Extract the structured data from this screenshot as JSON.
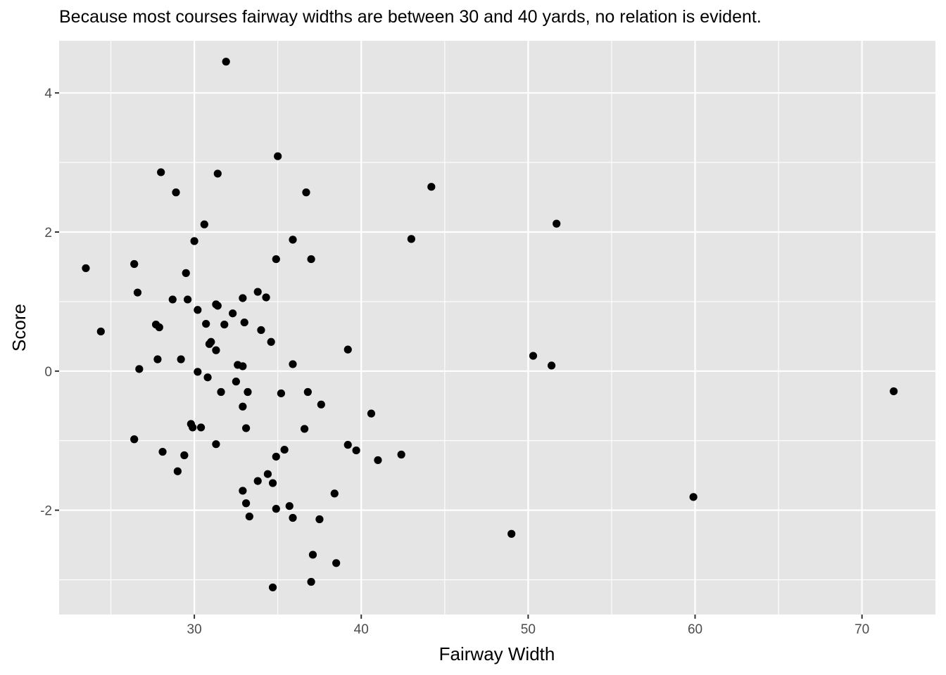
{
  "chart_data": {
    "type": "scatter",
    "title": "Because most courses fairway widths are between 30 and 40 yards, no relation is evident.",
    "xlabel": "Fairway Width",
    "ylabel": "Score",
    "xlim": [
      21.9,
      74.4
    ],
    "ylim": [
      -3.5,
      4.75
    ],
    "x_ticks": [
      30,
      40,
      50,
      60,
      70
    ],
    "y_ticks": [
      -2,
      0,
      2,
      4
    ],
    "x_minor_ticks": [
      25,
      35,
      45,
      55,
      65
    ],
    "y_minor_ticks": [
      -3,
      -1,
      1,
      3
    ],
    "grid": true,
    "point_color": "#000000",
    "panel_color": "#e5e5e5",
    "grid_color": "#ffffff",
    "points": [
      {
        "x": 23.5,
        "y": 1.48
      },
      {
        "x": 24.4,
        "y": 0.57
      },
      {
        "x": 26.4,
        "y": 1.54
      },
      {
        "x": 26.4,
        "y": -0.98
      },
      {
        "x": 26.6,
        "y": 1.13
      },
      {
        "x": 26.7,
        "y": 0.03
      },
      {
        "x": 27.7,
        "y": 0.67
      },
      {
        "x": 27.8,
        "y": 0.17
      },
      {
        "x": 27.9,
        "y": 0.63
      },
      {
        "x": 28.0,
        "y": 2.86
      },
      {
        "x": 28.1,
        "y": -1.16
      },
      {
        "x": 28.7,
        "y": 1.03
      },
      {
        "x": 28.9,
        "y": 2.57
      },
      {
        "x": 29.0,
        "y": -1.44
      },
      {
        "x": 29.2,
        "y": 0.17
      },
      {
        "x": 29.4,
        "y": -1.21
      },
      {
        "x": 29.5,
        "y": 1.41
      },
      {
        "x": 29.6,
        "y": 1.03
      },
      {
        "x": 29.8,
        "y": -0.76
      },
      {
        "x": 29.9,
        "y": -0.81
      },
      {
        "x": 30.0,
        "y": 1.87
      },
      {
        "x": 30.2,
        "y": 0.88
      },
      {
        "x": 30.2,
        "y": -0.01
      },
      {
        "x": 30.4,
        "y": -0.81
      },
      {
        "x": 30.6,
        "y": 2.11
      },
      {
        "x": 30.7,
        "y": 0.68
      },
      {
        "x": 30.8,
        "y": -0.09
      },
      {
        "x": 30.9,
        "y": 0.39
      },
      {
        "x": 31.0,
        "y": 0.42
      },
      {
        "x": 31.3,
        "y": 0.96
      },
      {
        "x": 31.3,
        "y": 0.3
      },
      {
        "x": 31.3,
        "y": -1.05
      },
      {
        "x": 31.4,
        "y": 2.84
      },
      {
        "x": 31.4,
        "y": 0.94
      },
      {
        "x": 31.6,
        "y": -0.3
      },
      {
        "x": 31.8,
        "y": 0.67
      },
      {
        "x": 31.9,
        "y": 4.45
      },
      {
        "x": 32.3,
        "y": 0.83
      },
      {
        "x": 32.5,
        "y": -0.15
      },
      {
        "x": 32.6,
        "y": 0.09
      },
      {
        "x": 32.9,
        "y": 0.07
      },
      {
        "x": 32.9,
        "y": 1.05
      },
      {
        "x": 32.9,
        "y": -0.51
      },
      {
        "x": 32.9,
        "y": -1.72
      },
      {
        "x": 33.0,
        "y": 0.7
      },
      {
        "x": 33.1,
        "y": -0.82
      },
      {
        "x": 33.1,
        "y": -1.9
      },
      {
        "x": 33.2,
        "y": -0.3
      },
      {
        "x": 33.3,
        "y": -2.09
      },
      {
        "x": 33.8,
        "y": 1.14
      },
      {
        "x": 33.8,
        "y": -1.58
      },
      {
        "x": 34.0,
        "y": 0.59
      },
      {
        "x": 34.3,
        "y": 1.06
      },
      {
        "x": 34.4,
        "y": -1.48
      },
      {
        "x": 34.6,
        "y": 0.42
      },
      {
        "x": 34.7,
        "y": -1.61
      },
      {
        "x": 34.7,
        "y": -3.11
      },
      {
        "x": 34.9,
        "y": 1.61
      },
      {
        "x": 34.9,
        "y": -1.23
      },
      {
        "x": 34.9,
        "y": -1.98
      },
      {
        "x": 35.0,
        "y": 3.09
      },
      {
        "x": 35.2,
        "y": -0.32
      },
      {
        "x": 35.4,
        "y": -1.13
      },
      {
        "x": 35.7,
        "y": -1.94
      },
      {
        "x": 35.9,
        "y": 1.89
      },
      {
        "x": 35.9,
        "y": 0.1
      },
      {
        "x": 35.9,
        "y": -2.11
      },
      {
        "x": 36.6,
        "y": -0.83
      },
      {
        "x": 36.7,
        "y": 2.57
      },
      {
        "x": 36.8,
        "y": -0.3
      },
      {
        "x": 37.0,
        "y": 1.61
      },
      {
        "x": 37.0,
        "y": -3.03
      },
      {
        "x": 37.1,
        "y": -2.64
      },
      {
        "x": 37.5,
        "y": -2.13
      },
      {
        "x": 37.6,
        "y": -0.48
      },
      {
        "x": 38.4,
        "y": -1.76
      },
      {
        "x": 38.5,
        "y": -2.76
      },
      {
        "x": 39.2,
        "y": 0.31
      },
      {
        "x": 39.2,
        "y": -1.06
      },
      {
        "x": 39.7,
        "y": -1.14
      },
      {
        "x": 40.6,
        "y": -0.61
      },
      {
        "x": 41.0,
        "y": -1.28
      },
      {
        "x": 42.4,
        "y": -1.2
      },
      {
        "x": 43.0,
        "y": 1.9
      },
      {
        "x": 44.2,
        "y": 2.65
      },
      {
        "x": 49.0,
        "y": -2.34
      },
      {
        "x": 50.3,
        "y": 0.22
      },
      {
        "x": 51.4,
        "y": 0.08
      },
      {
        "x": 51.7,
        "y": 2.12
      },
      {
        "x": 59.9,
        "y": -1.81
      },
      {
        "x": 71.9,
        "y": -0.29
      }
    ]
  }
}
